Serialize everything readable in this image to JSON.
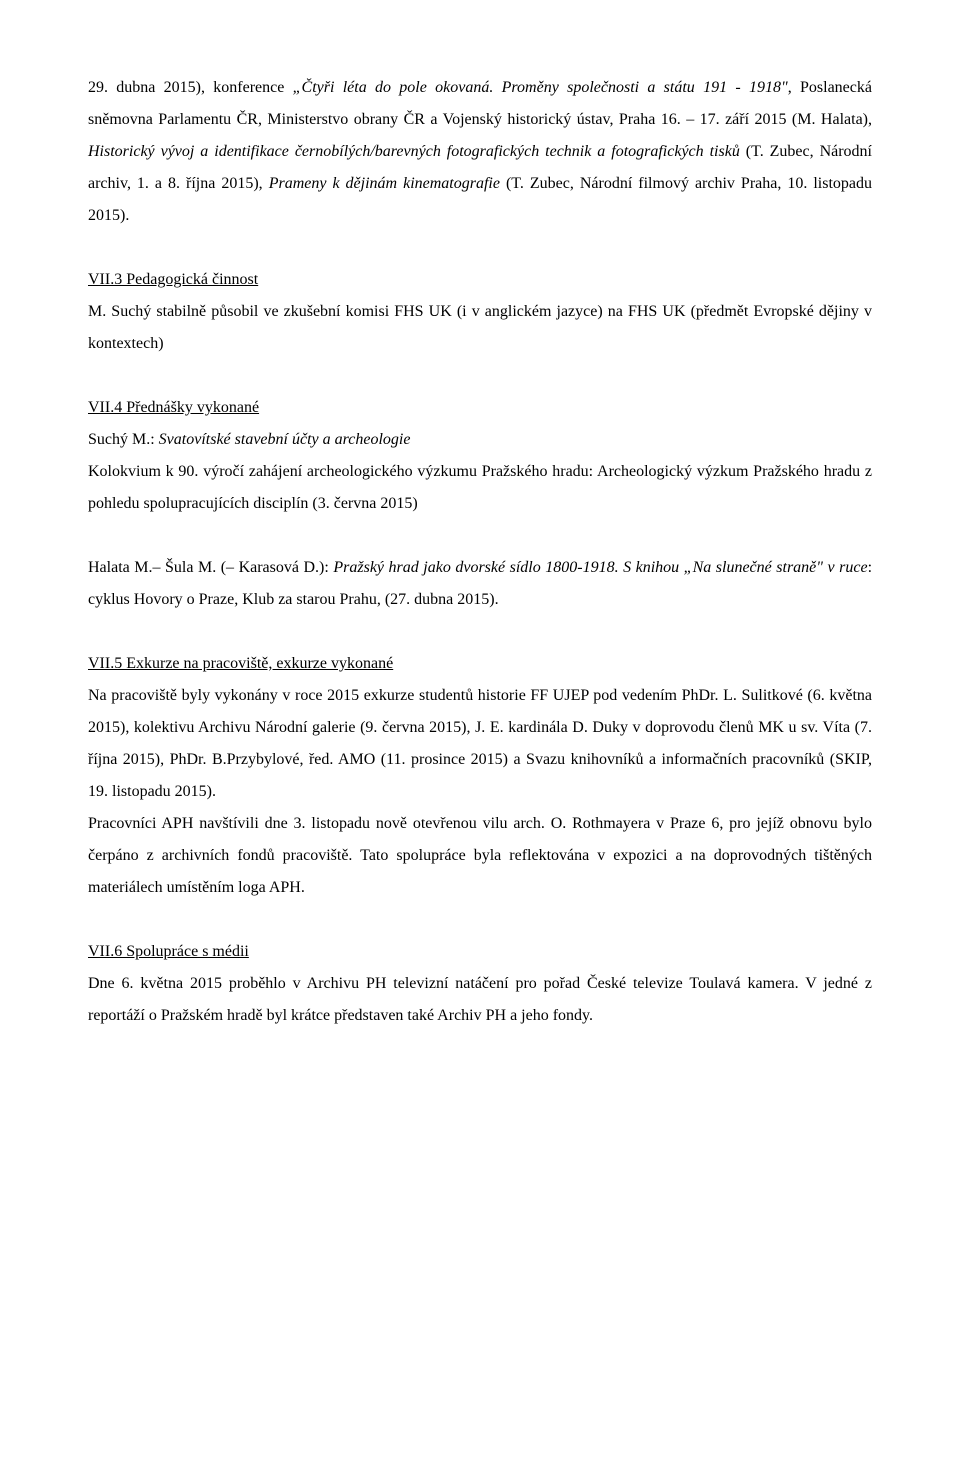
{
  "p1_part1": "29. dubna 2015), konference ",
  "p1_italic1": "„Čtyři léta do pole okovaná. Proměny společnosti a státu 191 - 1918\"",
  "p1_part2": ", Poslanecká sněmovna Parlamentu ČR, Ministerstvo obrany ČR a Vojenský historický ústav, Praha 16. – 17. září 2015 (M. Halata), ",
  "p1_italic2": "Historický vývoj a identifikace černobílých/barevných fotografických technik a fotografických tisků",
  "p1_part3": " (T. Zubec, Národní archiv, 1. a 8. října 2015), ",
  "p1_italic3": "Prameny k dějinám kinematografie",
  "p1_part4": " (T. Zubec, Národní filmový archiv Praha, 10. listopadu 2015).",
  "h1": "VII.3 Pedagogická činnost",
  "p2": "M. Suchý stabilně působil ve zkušební komisi FHS UK (i v anglickém jazyce) na FHS UK (předmět Evropské dějiny v kontextech)",
  "h2": "VII.4 Přednášky vykonané",
  "p3_part1": "Suchý M.: ",
  "p3_italic1": "Svatovítské stavební účty a archeologie",
  "p4": "Kolokvium k 90. výročí zahájení archeologického výzkumu Pražského hradu: Archeologický výzkum Pražského hradu z pohledu spolupracujících disciplín (3. června 2015)",
  "p5_part1": "Halata M.– Šula M. (– Karasová D.): ",
  "p5_italic1": "Pražský hrad jako dvorské sídlo 1800-1918. S knihou „Na slunečné straně\" v ruce",
  "p5_part2": ": cyklus Hovory o Praze, Klub za starou Prahu, (27. dubna 2015).",
  "h3": "VII.5 Exkurze na pracoviště, exkurze vykonané",
  "p6": "Na pracoviště byly vykonány v roce 2015 exkurze studentů historie FF UJEP pod vedením PhDr. L. Sulitkové (6. května 2015), kolektivu Archivu Národní galerie (9. června 2015), J. E. kardinála D. Duky v doprovodu členů MK u sv. Víta (7. října 2015), PhDr. B.Przybylové, řed. AMO (11. prosince 2015) a Svazu knihovníků a informačních pracovníků (SKIP, 19. listopadu 2015).",
  "p7": "Pracovníci APH navštívili dne 3. listopadu nově otevřenou vilu arch. O. Rothmayera v Praze 6, pro jejíž obnovu bylo čerpáno z archivních fondů pracoviště. Tato spolupráce byla reflektována v expozici a na doprovodných tištěných materiálech umístěním loga APH.",
  "h4": "VII.6 Spolupráce s médii",
  "p8": "Dne 6. května 2015 proběhlo v Archivu PH televizní natáčení pro pořad České televize Toulavá kamera. V jedné z reportáží o Pražském hradě byl krátce představen také Archiv PH a jeho fondy."
}
